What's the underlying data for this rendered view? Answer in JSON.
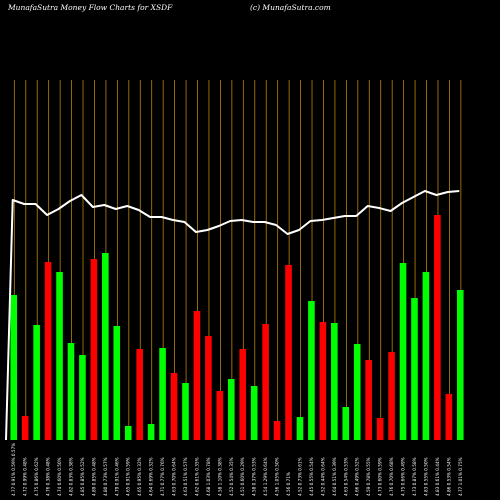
{
  "header": {
    "title": "MunafaSutra  Money Flow  Charts for XSDF",
    "site": "(c) MunafaSutra.com"
  },
  "colors": {
    "background": "#000000",
    "up": "#00ff00",
    "down": "#ff0000",
    "line": "#ffffff",
    "grid": "#b8860b"
  },
  "chart_data": {
    "type": "bar",
    "series": [
      {
        "name": "",
        "values": [
          145,
          24,
          115,
          178,
          168,
          97,
          85,
          181,
          187,
          114,
          14,
          91,
          16,
          92,
          67,
          57,
          129,
          104,
          49,
          61,
          91,
          54,
          116,
          19,
          175,
          23,
          139,
          118,
          117,
          33,
          96,
          80,
          22,
          88,
          177,
          142,
          168,
          225,
          46,
          150
        ],
        "colors": [
          "up",
          "down",
          "up",
          "down",
          "up",
          "up",
          "up",
          "down",
          "up",
          "up",
          "up",
          "down",
          "up",
          "up",
          "down",
          "up",
          "down",
          "down",
          "down",
          "up",
          "down",
          "up",
          "down",
          "down",
          "down",
          "up",
          "up",
          "down",
          "up",
          "up",
          "up",
          "down",
          "down",
          "down",
          "up",
          "up",
          "up",
          "down",
          "down",
          "up"
        ]
      },
      {
        "name": "",
        "type": "line",
        "values": [
          240,
          236,
          236,
          225,
          231,
          239,
          245,
          233,
          235,
          231,
          234,
          230,
          223,
          223,
          220,
          218,
          208,
          210,
          214,
          219,
          220,
          218,
          218,
          215,
          206,
          210,
          219,
          220,
          222,
          224,
          224,
          234,
          232,
          229,
          237,
          243,
          249,
          245,
          248,
          249
        ]
      }
    ],
    "categories": [
      "4.77 0.91% 0.59% 0.57%",
      "4.72 0.99% 0.48%",
      "4.75 0.86% 0.62%",
      "4.76 0.38% 0.48%",
      "4.74 0.60% 0.50%",
      "4.82 0.83% 0.38%",
      "4.85 0.85% 0.52%",
      "4.89 0.85% 0.48%",
      "4.80 0.73% 0.57%",
      "4.79 0.91% 0.46%",
      "4.65 0.91% 0.59%",
      "4.65 0.95% 0.32%",
      "4.64 0.69% 0.32%",
      "4.71 0.77% 0.76%",
      "4.63 0.70% 0.64%",
      "4.63 0.51% 0.57%",
      "4.62 0.61% 0.35%",
      "4.68 1.03% 0.78%",
      "4.58 1.10% 0.38%",
      "4.52 0.54% 0.35%",
      "4.51 0.60% 0.29%",
      "4.58 0.37% 0.53%",
      "4.54 1.29% 0.64%",
      "4.56 1.05% 0.50%",
      "4.56 0.71%",
      "4.52 0.73% 0.61%",
      "4.45 0.55% 0.54%",
      "4.52 0.44% 0.64%",
      "4.64 0.51% 0.39%",
      "4.63 0.54% 0.53%",
      "4.66 0.49% 0.52%",
      "4.59 0.78% 0.55%",
      "4.73 0.60% 0.59%",
      "4.76 0.70% 0.68%",
      "4.75 0.66% 0.49%",
      "4.73 0.87% 0.58%",
      "4.83 0.55% 0.50%",
      "4.83 0.61% 0.44%",
      "4.86 0.53% 0.54%",
      "4.77 1.01% 0.75%"
    ],
    "title": "MunafaSutra  Money Flow  Charts for XSDF",
    "xlabel": "",
    "ylabel": "",
    "ylim": [
      0,
      360
    ],
    "grid": true
  }
}
